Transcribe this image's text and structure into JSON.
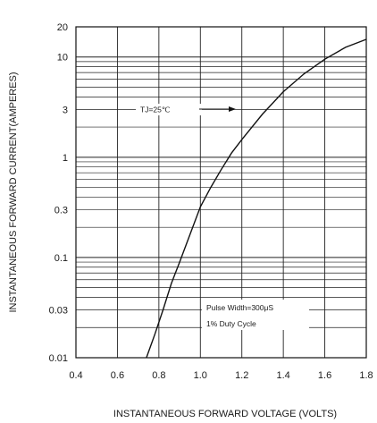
{
  "chart_data": {
    "type": "line",
    "xlabel": "INSTANTANEOUS FORWARD VOLTAGE (VOLTS)",
    "ylabel": "INSTANTANEOUS FORWARD CURRENT(AMPERES)",
    "xlim": [
      0.4,
      1.8
    ],
    "ylim": [
      0.01,
      20
    ],
    "y_scale": "log",
    "grid": true,
    "x_ticks": [
      "0.4",
      "0.6",
      "0.8",
      "1.0",
      "1.2",
      "1.4",
      "1.6",
      "1.8"
    ],
    "y_ticks": [
      {
        "value": 0.01,
        "label": "0.01"
      },
      {
        "value": 0.03,
        "label": "0.03"
      },
      {
        "value": 0.1,
        "label": "0.1"
      },
      {
        "value": 0.3,
        "label": "0.3"
      },
      {
        "value": 1,
        "label": "1"
      },
      {
        "value": 3,
        "label": "3"
      },
      {
        "value": 10,
        "label": "10"
      },
      {
        "value": 20,
        "label": "20"
      }
    ],
    "series": [
      {
        "x": [
          0.74,
          0.78,
          0.82,
          0.86,
          0.9,
          0.95,
          1.0,
          1.05,
          1.1,
          1.15,
          1.2,
          1.3,
          1.4,
          1.5,
          1.6,
          1.7,
          1.8
        ],
        "y": [
          0.01,
          0.017,
          0.03,
          0.055,
          0.09,
          0.17,
          0.32,
          0.5,
          0.75,
          1.1,
          1.5,
          2.7,
          4.5,
          6.8,
          9.5,
          12.5,
          15.0
        ]
      }
    ],
    "annotations": {
      "temp": "TJ=25℃",
      "pulse": "Pulse Width=300μS",
      "duty": "1% Duty Cycle"
    }
  }
}
